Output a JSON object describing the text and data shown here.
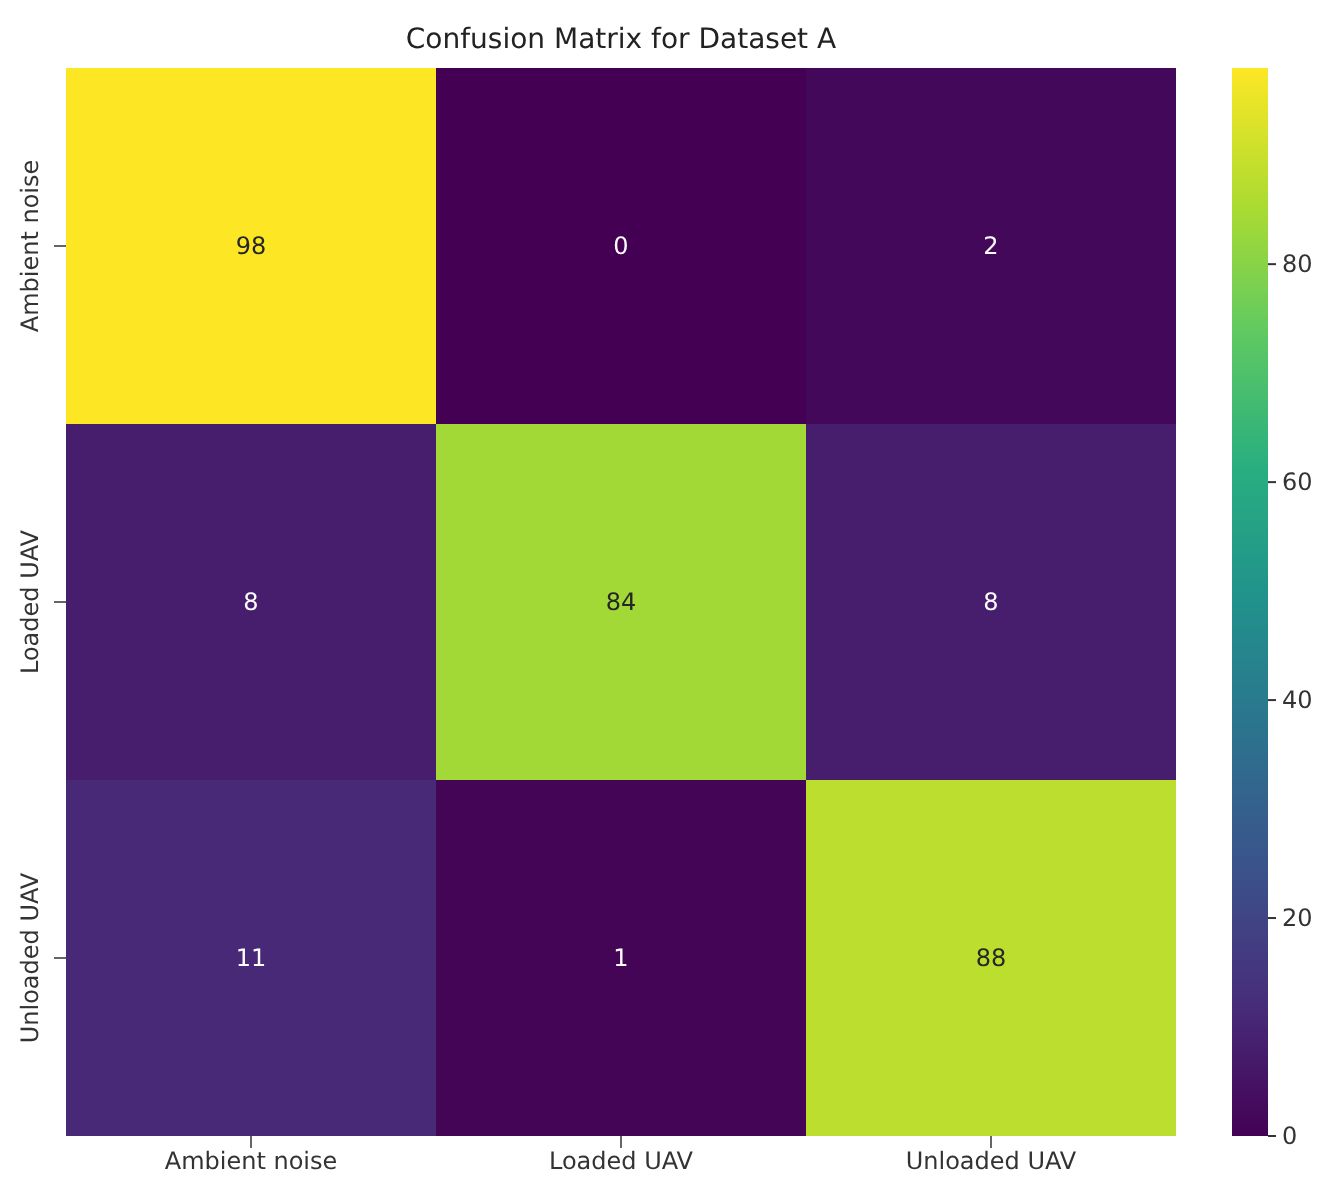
{
  "chart_data": {
    "type": "heatmap",
    "title": "Confusion Matrix for Dataset A",
    "categories": [
      "Ambient noise",
      "Loaded UAV",
      "Unloaded UAV"
    ],
    "y_categories": [
      "Ambient noise",
      "Loaded UAV",
      "Unloaded UAV"
    ],
    "cells": [
      [
        98,
        0,
        2
      ],
      [
        8,
        84,
        8
      ],
      [
        11,
        1,
        88
      ]
    ],
    "clim": [
      0,
      98
    ],
    "cticks": [
      0,
      20,
      40,
      60,
      80
    ],
    "data_labels": true
  }
}
